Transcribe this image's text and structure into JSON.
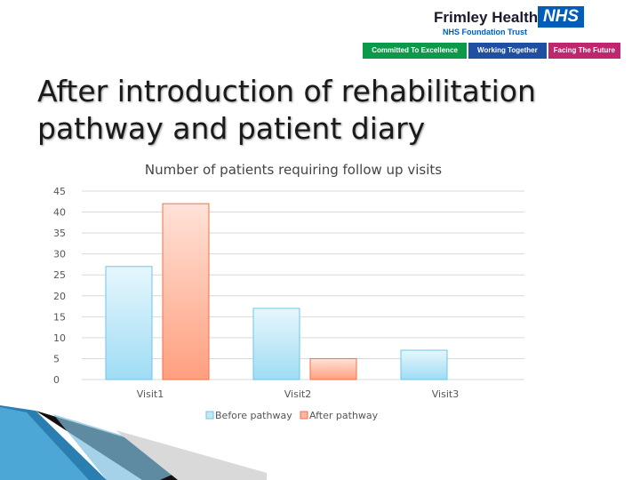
{
  "logo": {
    "org_name": "Frimley Health",
    "nhs_mark": "NHS",
    "trust_name": "NHS Foundation Trust",
    "values": [
      "Committed To Excellence",
      "Working Together",
      "Facing The Future"
    ],
    "colors": {
      "green": "#0b9a4a",
      "blue": "#1f4fa3",
      "pink": "#c0266e",
      "nhs_blue": "#005eb8"
    }
  },
  "slide": {
    "title": "After introduction of rehabilitation pathway and patient diary"
  },
  "chart_data": {
    "type": "bar",
    "title": "Number of patients requiring follow up visits",
    "categories": [
      "Visit1",
      "Visit2",
      "Visit3"
    ],
    "series": [
      {
        "name": "Before pathway",
        "values": [
          27,
          17,
          7
        ],
        "color": "#bfe9f7"
      },
      {
        "name": "After pathway",
        "values": [
          42,
          5,
          0
        ],
        "color": "#ffb8a0"
      }
    ],
    "ylim": [
      0,
      45
    ],
    "yticks": [
      "0",
      "5",
      "10",
      "15",
      "20",
      "25",
      "30",
      "35",
      "40",
      "45"
    ],
    "grid": true,
    "legend_position": "bottom"
  }
}
